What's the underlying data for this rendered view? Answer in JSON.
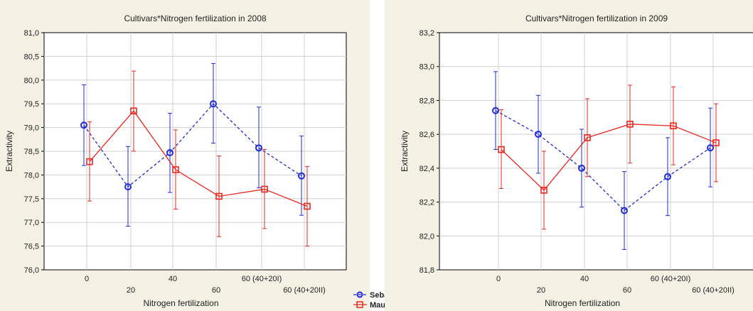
{
  "colors": {
    "sebastian": "#1f2bd6",
    "mauritia": "#e8271f",
    "grid": "#cfcfcf",
    "plot_bg": "#ffffff",
    "panel_bg": "#f4f1e4"
  },
  "legend": {
    "placement": "bottom-right",
    "items": [
      "Sebastian",
      "Mauritia"
    ]
  },
  "chart_data": [
    {
      "type": "line",
      "title": "Cultivars*Nitrogen fertilization in 2008",
      "xlabel": "Nitrogen fertilization",
      "ylabel": "Extractivity",
      "categories": [
        "0",
        "20",
        "40",
        "60",
        "60 (40+20I)",
        "60 (40+20II)"
      ],
      "ylim": [
        76.0,
        81.0
      ],
      "yticks": [
        "76,0",
        "76,5",
        "77,0",
        "77,5",
        "78,0",
        "78,5",
        "79,0",
        "79,5",
        "80,0",
        "80,5",
        "81,0"
      ],
      "grid": true,
      "series": [
        {
          "name": "Sebastian",
          "style": "dashed",
          "marker": "circle",
          "values": [
            79.05,
            77.75,
            78.47,
            79.5,
            78.57,
            77.98
          ],
          "lower": [
            78.2,
            76.92,
            77.63,
            78.67,
            77.73,
            77.15
          ],
          "upper": [
            79.9,
            78.6,
            79.3,
            80.35,
            79.43,
            78.82
          ]
        },
        {
          "name": "Mauritia",
          "style": "solid",
          "marker": "square",
          "values": [
            78.28,
            79.35,
            78.11,
            77.55,
            77.7,
            77.34
          ],
          "lower": [
            77.45,
            78.5,
            77.28,
            76.7,
            76.87,
            76.5
          ],
          "upper": [
            79.12,
            80.19,
            78.95,
            78.4,
            78.54,
            78.18
          ]
        }
      ]
    },
    {
      "type": "line",
      "title": "Cultivars*Nitrogen fertilization in 2009",
      "xlabel": "Nitrogen fertilization",
      "ylabel": "Extractivity",
      "categories": [
        "0",
        "20",
        "40",
        "60",
        "60 (40+20I)",
        "60 (40+20II)"
      ],
      "ylim": [
        81.8,
        83.2
      ],
      "yticks": [
        "81,8",
        "82,0",
        "82,2",
        "82,4",
        "82,6",
        "82,8",
        "83,0",
        "83,2"
      ],
      "grid": true,
      "series": [
        {
          "name": "Sebastian",
          "style": "dashed",
          "marker": "circle",
          "values": [
            82.74,
            82.6,
            82.4,
            82.15,
            82.35,
            82.52
          ],
          "lower": [
            82.51,
            82.37,
            82.17,
            81.92,
            82.12,
            82.29
          ],
          "upper": [
            82.97,
            82.83,
            82.63,
            82.38,
            82.58,
            82.755
          ]
        },
        {
          "name": "Mauritia",
          "style": "solid",
          "marker": "square",
          "values": [
            82.51,
            82.27,
            82.58,
            82.66,
            82.65,
            82.55
          ],
          "lower": [
            82.28,
            82.04,
            82.35,
            82.43,
            82.42,
            82.32
          ],
          "upper": [
            82.745,
            82.5,
            82.81,
            82.89,
            82.88,
            82.78
          ]
        }
      ]
    }
  ]
}
